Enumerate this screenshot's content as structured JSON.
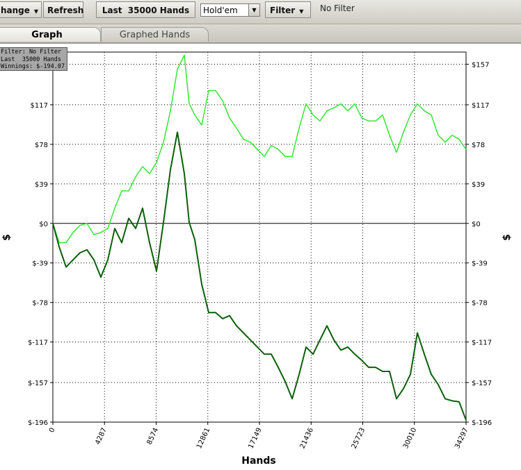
{
  "toolbar": {
    "change": "hange",
    "refresh": "Refresh",
    "hands": "Last  35000 Hands",
    "game": "Hold'em",
    "filter": "Filter",
    "filter_status": "No Filter"
  },
  "tabs": [
    "Graph",
    "Graphed Hands"
  ],
  "chart_data": {
    "type": "line",
    "annotations": [
      "Filter: No Filter",
      "Last  35000 Hands",
      "Winnings: $-194.07"
    ],
    "x_label": "Hands",
    "y_label": "$",
    "xlim": [
      0,
      34297
    ],
    "xticks": [
      0,
      4287,
      8574,
      12861,
      17149,
      21436,
      25723,
      30010,
      34297
    ],
    "ylim": [
      -196,
      169
    ],
    "yticks": [
      {
        "value": -196,
        "label": "$-196"
      },
      {
        "value": -157,
        "label": "$-157"
      },
      {
        "value": -117,
        "label": "$-117"
      },
      {
        "value": -78,
        "label": "$-78"
      },
      {
        "value": -39,
        "label": "$-39"
      },
      {
        "value": 0,
        "label": "$0"
      },
      {
        "value": 39,
        "label": "$39"
      },
      {
        "value": 78,
        "label": "$78"
      },
      {
        "value": 117,
        "label": "$117"
      },
      {
        "value": 157,
        "label": "$157"
      }
    ],
    "grid": true,
    "x": [
      0,
      520,
      1097,
      1674,
      2252,
      2829,
      3407,
      3984,
      4561,
      5139,
      5716,
      6294,
      6871,
      7448,
      8026,
      8603,
      9181,
      9758,
      10335,
      10913,
      11317,
      11779,
      12356,
      12934,
      13511,
      14089,
      14666,
      15243,
      15821,
      16398,
      16976,
      17553,
      18130,
      18708,
      19285,
      19863,
      20440,
      21017,
      21595,
      22172,
      22750,
      23327,
      23904,
      24482,
      25059,
      25637,
      26214,
      26791,
      27369,
      27946,
      28524,
      29101,
      29678,
      30256,
      30833,
      31411,
      31988,
      32565,
      33143,
      33720,
      34297
    ],
    "series": [
      {
        "color": "#33e833",
        "values": [
          0,
          -19,
          -19,
          -9,
          -2,
          0,
          -11,
          -9,
          -5,
          15,
          32,
          32,
          46,
          56,
          49,
          60,
          80,
          111,
          152,
          166,
          118,
          107,
          97,
          131,
          131,
          121,
          104,
          94,
          83,
          80,
          73,
          66,
          77,
          73,
          66,
          66,
          94,
          118,
          107,
          101,
          111,
          114,
          118,
          111,
          118,
          104,
          101,
          101,
          107,
          87,
          70,
          90,
          107,
          118,
          111,
          107,
          87,
          80,
          87,
          83,
          73
        ]
      },
      {
        "color": "#0b5e0b",
        "values": [
          0,
          -23,
          -43,
          -36,
          -29,
          -26,
          -36,
          -53,
          -36,
          -5,
          -19,
          5,
          -5,
          15,
          -19,
          -47,
          1,
          53,
          90,
          49,
          1,
          -16,
          -60,
          -88,
          -88,
          -94,
          -91,
          -101,
          -108,
          -115,
          -122,
          -129,
          -129,
          -142,
          -156,
          -173,
          -149,
          -122,
          -129,
          -115,
          -101,
          -115,
          -125,
          -122,
          -129,
          -135,
          -142,
          -142,
          -146,
          -146,
          -173,
          -163,
          -149,
          -108,
          -129,
          -149,
          -159,
          -173,
          -175,
          -176,
          -194.07
        ]
      }
    ]
  }
}
